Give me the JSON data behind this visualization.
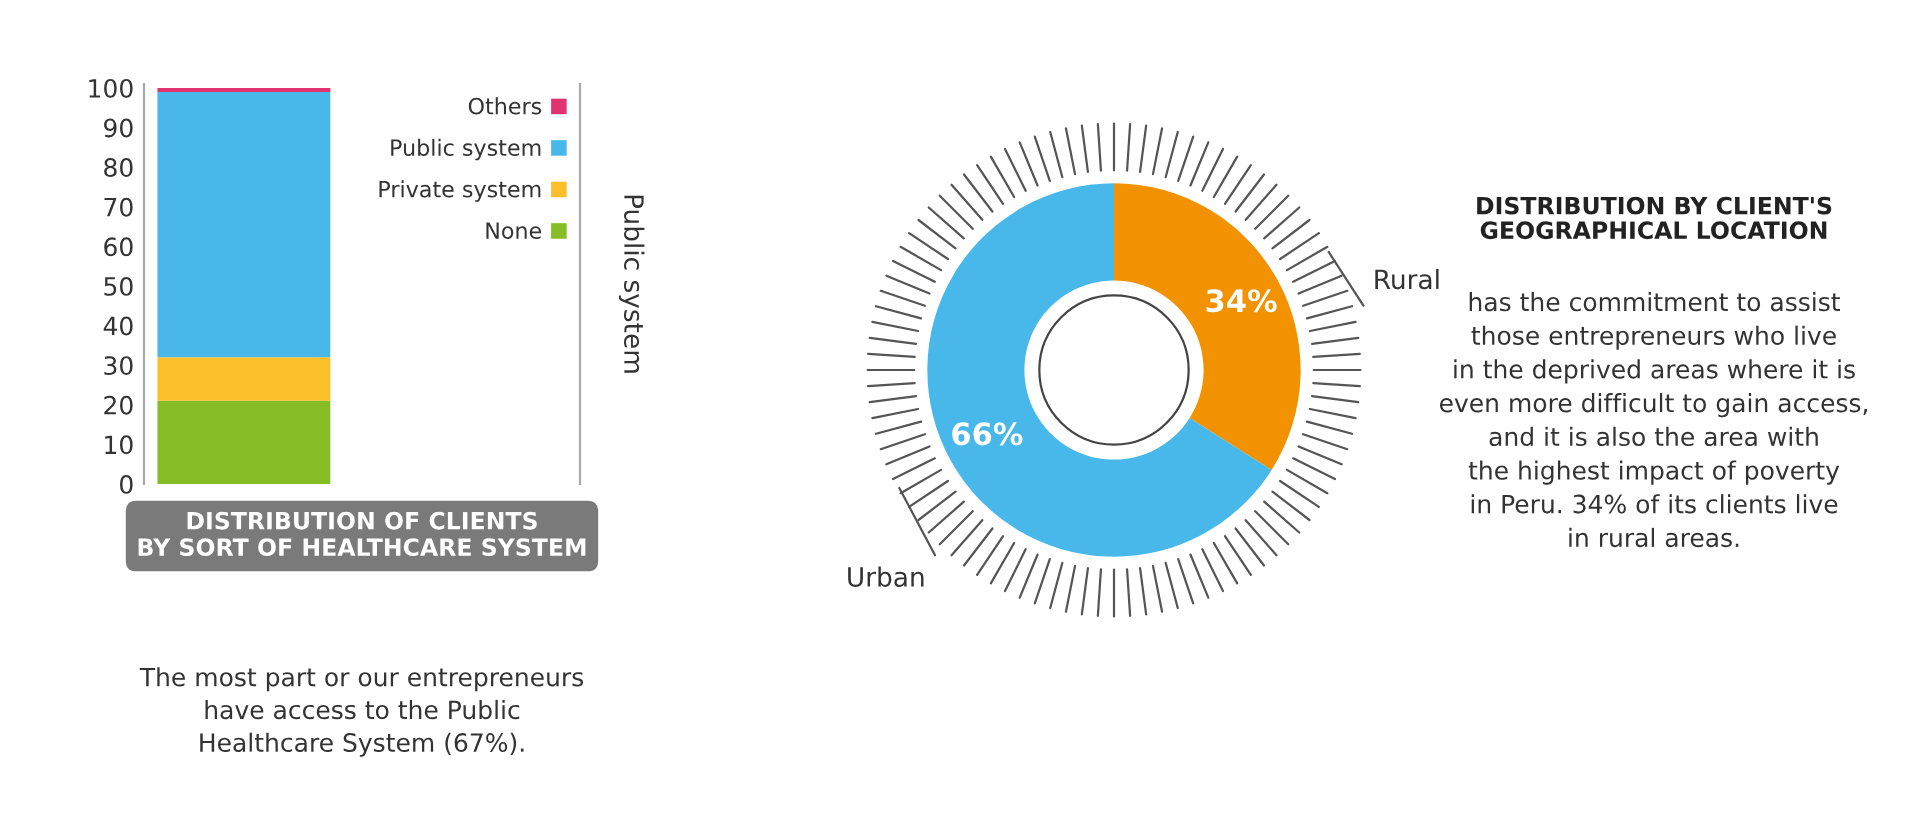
{
  "chart_data": [
    {
      "type": "bar",
      "title": "DISTRIBUTION OF CLIENTS\nBY SORT OF HEALTHCARE SYSTEM",
      "ylabel": "Public system",
      "categories": [
        null
      ],
      "stacked": true,
      "series": [
        {
          "name": "None",
          "color": "#86bc25",
          "values": [
            21
          ]
        },
        {
          "name": "Private system",
          "color": "#fbbf2b",
          "values": [
            11
          ]
        },
        {
          "name": "Public system",
          "color": "#47b8e9",
          "values": [
            67
          ]
        },
        {
          "name": "Others",
          "color": "#e0336f",
          "values": [
            1
          ]
        }
      ],
      "ylim": [
        0,
        101
      ],
      "yticks": [
        0,
        10,
        20,
        30,
        40,
        50,
        60,
        70,
        80,
        90,
        100
      ],
      "grid": false,
      "legend": "top right",
      "annotations": [
        "The most part or our entrepreneurs\nhave access to the Public\nHealthcare System (67%)."
      ]
    },
    {
      "type": "donut",
      "title": "DISTRIBUTION BY CLIENT'S\nGEOGRAPHICAL LOCATION",
      "categories": [
        "Rural",
        "Urban"
      ],
      "values": [
        34,
        66
      ],
      "colors": [
        "#f39200",
        "#47b8e9"
      ],
      "value_labels": [
        "34%",
        "66%"
      ],
      "annotations": [
        "has the commitment to assist\nthose entrepreneurs who live\nin the deprived areas where it is\neven more difficult to gain access,\nand it is also the area with\nthe highest impact of poverty\nin Peru. 34% of its clients live\nin rural areas."
      ]
    }
  ]
}
